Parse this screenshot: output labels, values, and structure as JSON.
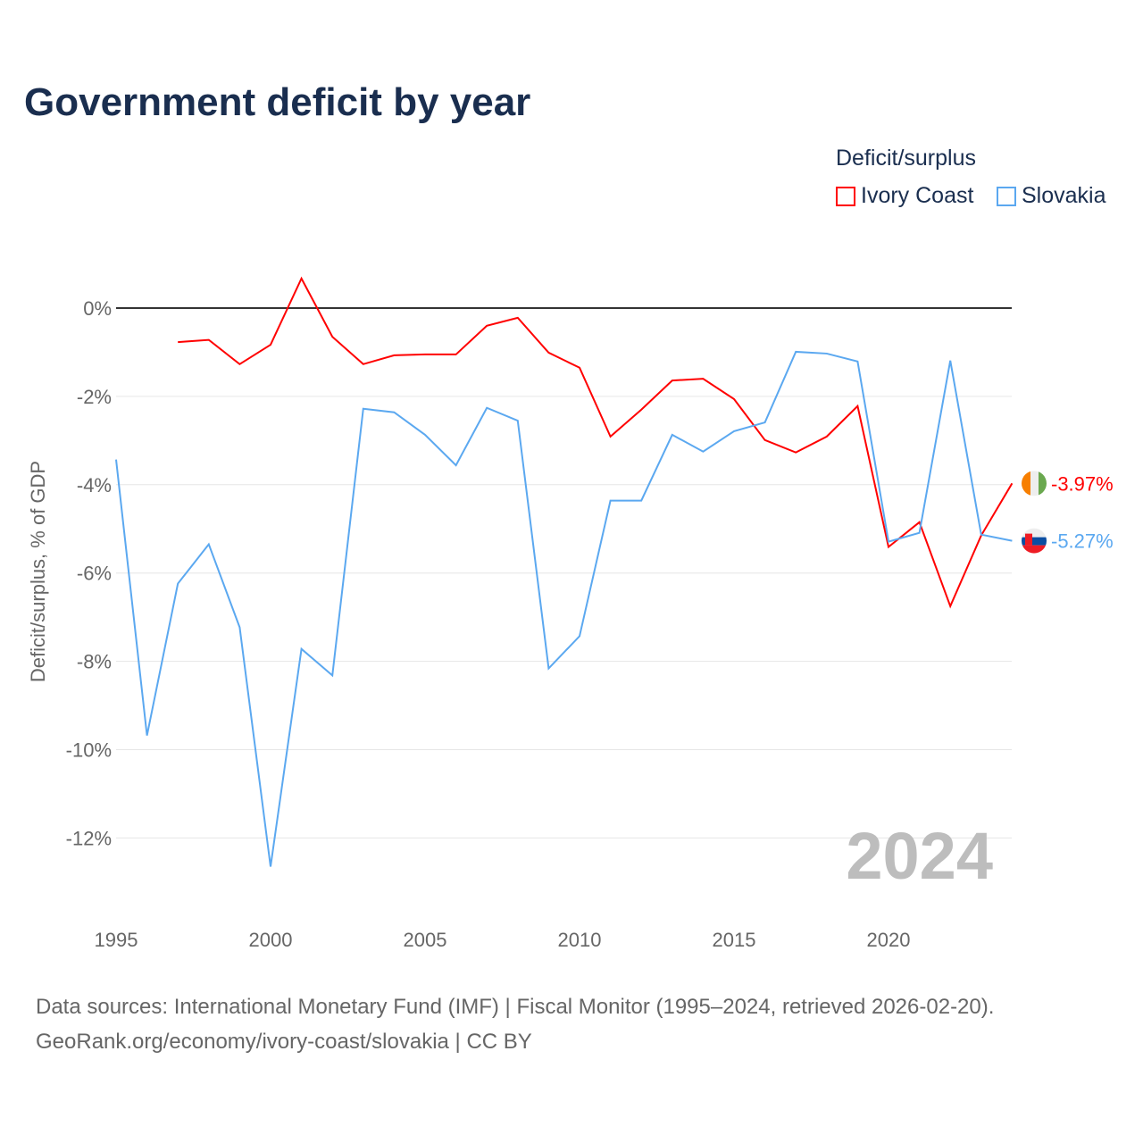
{
  "chart_data": {
    "type": "line",
    "title": "Government deficit by year",
    "xlabel": "",
    "ylabel": "Deficit/surplus, % of GDP",
    "legend_title": "Deficit/surplus",
    "xlim": [
      1995,
      2024
    ],
    "ylim": [
      -13.5,
      1
    ],
    "x_ticks": [
      1995,
      2000,
      2005,
      2010,
      2015,
      2020
    ],
    "y_ticks": [
      0,
      -2,
      -4,
      -6,
      -8,
      -10,
      -12
    ],
    "y_tick_labels": [
      "0%",
      "-2%",
      "-4%",
      "-6%",
      "-8%",
      "-10%",
      "-12%"
    ],
    "year_watermark": "2024",
    "series": [
      {
        "name": "Ivory Coast",
        "color": "#ff0000",
        "end_label": "-3.97%",
        "x": [
          1997,
          1998,
          1999,
          2000,
          2001,
          2002,
          2003,
          2004,
          2005,
          2006,
          2007,
          2008,
          2009,
          2010,
          2011,
          2012,
          2013,
          2014,
          2015,
          2016,
          2017,
          2018,
          2019,
          2020,
          2021,
          2022,
          2023,
          2024
        ],
        "values": [
          -0.77,
          -0.72,
          -1.27,
          -0.83,
          0.67,
          -0.65,
          -1.27,
          -1.07,
          -1.05,
          -1.05,
          -0.4,
          -0.22,
          -1.01,
          -1.35,
          -2.91,
          -2.3,
          -1.64,
          -1.6,
          -2.06,
          -2.99,
          -3.27,
          -2.91,
          -2.22,
          -5.41,
          -4.85,
          -6.75,
          -5.15,
          -3.97
        ]
      },
      {
        "name": "Slovakia",
        "color": "#5ba8f0",
        "end_label": "-5.27%",
        "x": [
          1995,
          1996,
          1997,
          1998,
          1999,
          2000,
          2001,
          2002,
          2003,
          2004,
          2005,
          2006,
          2007,
          2008,
          2009,
          2010,
          2011,
          2012,
          2013,
          2014,
          2015,
          2016,
          2017,
          2018,
          2019,
          2020,
          2021,
          2022,
          2023,
          2024
        ],
        "values": [
          -3.43,
          -9.68,
          -6.24,
          -5.35,
          -7.23,
          -12.65,
          -7.72,
          -8.32,
          -2.28,
          -2.36,
          -2.87,
          -3.56,
          -2.26,
          -2.55,
          -8.16,
          -7.43,
          -4.36,
          -4.36,
          -2.87,
          -3.25,
          -2.79,
          -2.59,
          -0.99,
          -1.03,
          -1.21,
          -5.29,
          -5.09,
          -1.19,
          -5.13,
          -5.27
        ]
      }
    ]
  },
  "footer": {
    "line1": "Data sources: International Monetary Fund (IMF) | Fiscal Monitor (1995–2024, retrieved 2026-02-20).",
    "line2": "GeoRank.org/economy/ivory-coast/slovakia | CC BY"
  }
}
